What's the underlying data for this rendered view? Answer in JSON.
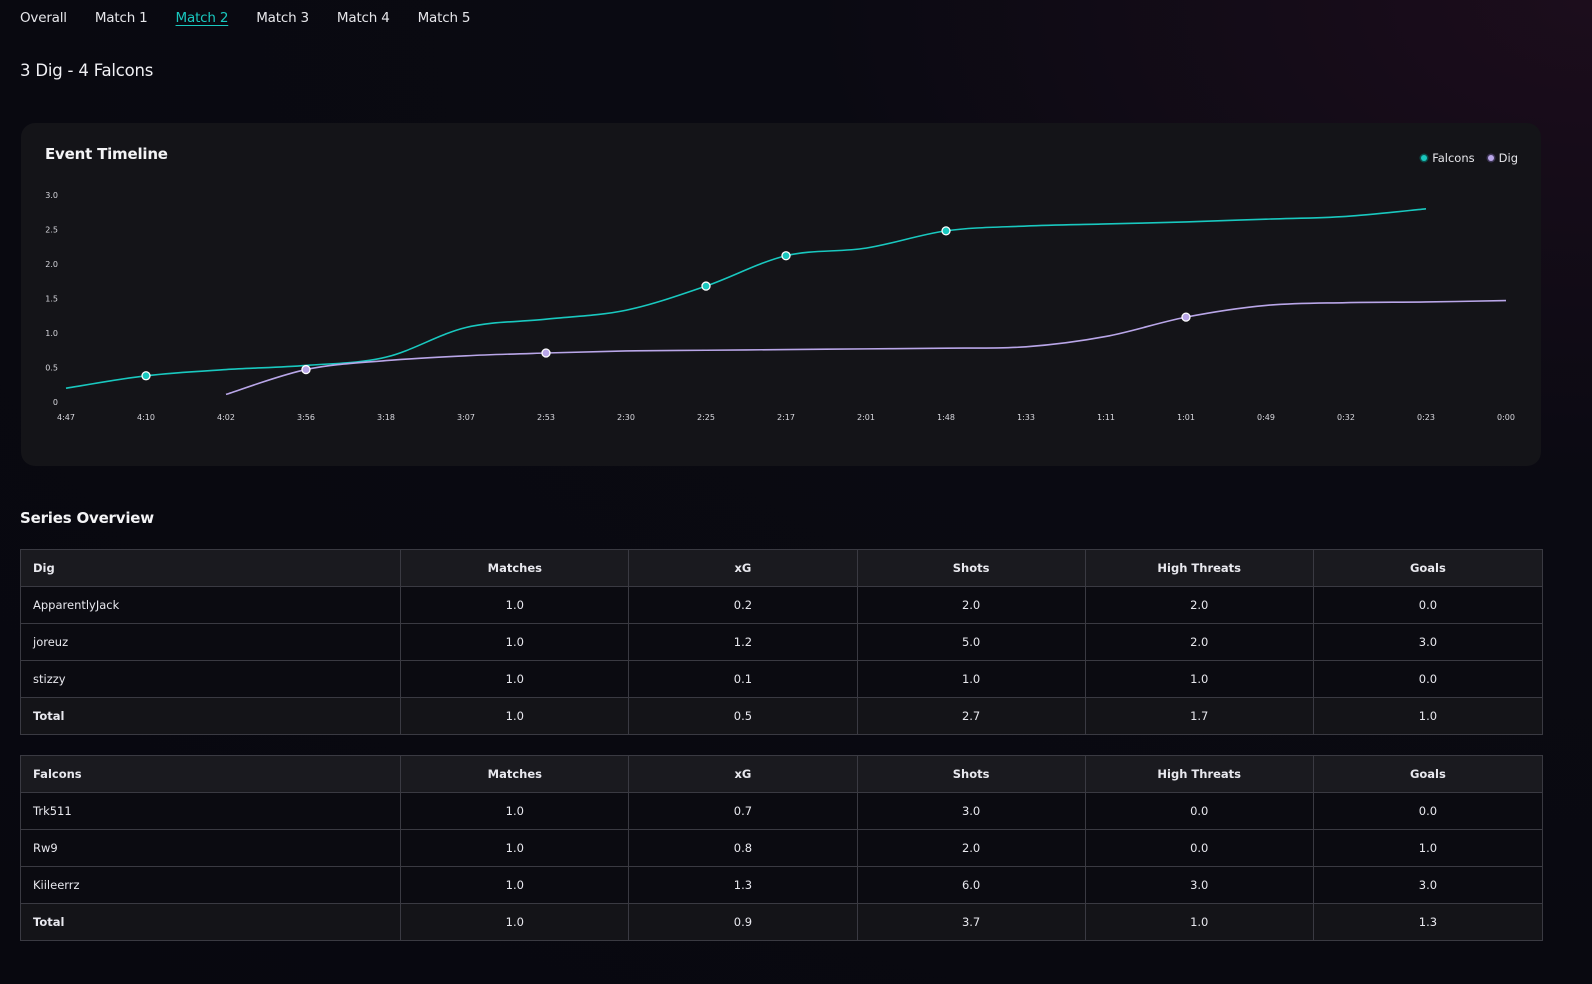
{
  "tabs": [
    "Overall",
    "Match 1",
    "Match 2",
    "Match 3",
    "Match 4",
    "Match 5"
  ],
  "active_tab": 2,
  "match_title": "3 Dig - 4 Falcons",
  "chart": {
    "title": "Event Timeline",
    "legend": [
      {
        "name": "Falcons",
        "color": "#19c8bf"
      },
      {
        "name": "Dig",
        "color": "#b9a6e8"
      }
    ]
  },
  "chart_data": {
    "type": "line",
    "title": "Event Timeline",
    "x": [
      "4:47",
      "4:10",
      "4:02",
      "3:56",
      "3:18",
      "3:07",
      "2:53",
      "2:30",
      "2:25",
      "2:17",
      "2:01",
      "1:48",
      "1:33",
      "1:11",
      "1:01",
      "0:49",
      "0:32",
      "0:23",
      "0:00"
    ],
    "yticks": [
      "0",
      "0.5",
      "1.0",
      "1.5",
      "2.0",
      "2.5",
      "3.0"
    ],
    "ylim": [
      0,
      3.0
    ],
    "grid": false,
    "legend_position": "top-right",
    "series": [
      {
        "name": "Falcons",
        "color": "#19c8bf",
        "values": [
          0.2,
          0.38,
          0.47,
          0.53,
          0.65,
          1.08,
          1.2,
          1.33,
          1.68,
          2.12,
          2.23,
          2.48,
          2.55,
          2.58,
          2.61,
          2.65,
          2.69,
          2.8,
          null
        ],
        "markers": [
          1,
          8,
          9,
          11
        ]
      },
      {
        "name": "Dig",
        "color": "#b9a6e8",
        "values": [
          null,
          null,
          0.11,
          0.47,
          0.6,
          0.67,
          0.71,
          0.74,
          0.75,
          0.76,
          0.77,
          0.78,
          0.8,
          0.95,
          1.23,
          1.4,
          1.44,
          1.45,
          1.47
        ],
        "markers": [
          3,
          6,
          14
        ]
      }
    ]
  },
  "series_overview": {
    "title": "Series Overview",
    "columns": [
      "Matches",
      "xG",
      "Shots",
      "High Threats",
      "Goals"
    ],
    "teams": [
      {
        "name": "Dig",
        "rows": [
          [
            "ApparentlyJack",
            "1.0",
            "0.2",
            "2.0",
            "2.0",
            "0.0"
          ],
          [
            "joreuz",
            "1.0",
            "1.2",
            "5.0",
            "2.0",
            "3.0"
          ],
          [
            "stizzy",
            "1.0",
            "0.1",
            "1.0",
            "1.0",
            "0.0"
          ]
        ],
        "total": [
          "Total",
          "1.0",
          "0.5",
          "2.7",
          "1.7",
          "1.0"
        ]
      },
      {
        "name": "Falcons",
        "rows": [
          [
            "Trk511",
            "1.0",
            "0.7",
            "3.0",
            "0.0",
            "0.0"
          ],
          [
            "Rw9",
            "1.0",
            "0.8",
            "2.0",
            "0.0",
            "1.0"
          ],
          [
            "Kiileerrz",
            "1.0",
            "1.3",
            "6.0",
            "3.0",
            "3.0"
          ]
        ],
        "total": [
          "Total",
          "1.0",
          "0.9",
          "3.7",
          "1.0",
          "1.3"
        ]
      }
    ]
  }
}
